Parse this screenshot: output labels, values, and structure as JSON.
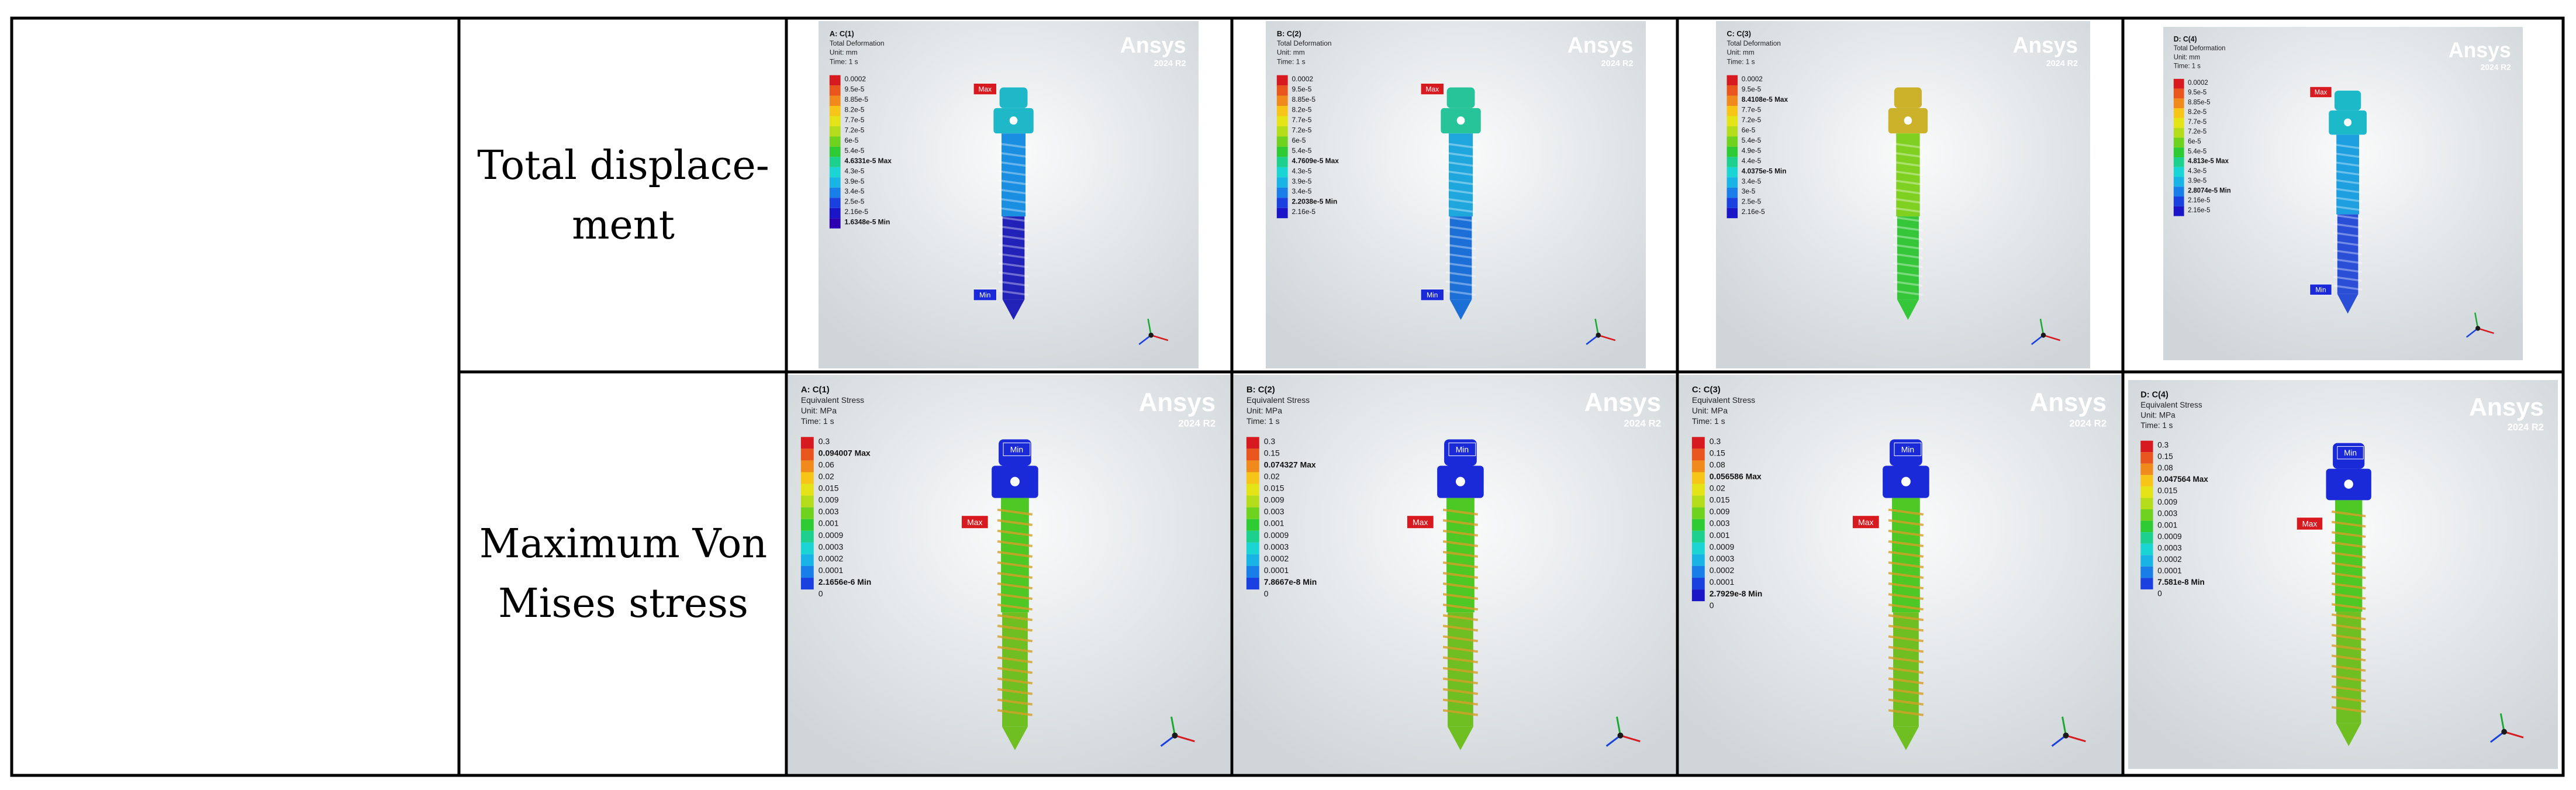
{
  "rows": [
    {
      "label": "Total displace-\nment",
      "panels": [
        {
          "id": "A: C(1)",
          "type": "Total Deformation",
          "unit": "Unit: mm",
          "time": "Time: 1 s",
          "legend": [
            "0.0002",
            "9.5e-5",
            "8.85e-5",
            "8.2e-5",
            "7.7e-5",
            "7.2e-5",
            "6e-5",
            "5.4e-5",
            "4.6331e-5 Max",
            "4.3e-5",
            "3.9e-5",
            "3.4e-5",
            "2.5e-5",
            "2.16e-5",
            "1.6348e-5 Min"
          ],
          "max_tag": "Max",
          "min_tag": "Min",
          "brand": "Ansys",
          "version": "2024 R2"
        },
        {
          "id": "B: C(2)",
          "type": "Total Deformation",
          "unit": "Unit: mm",
          "time": "Time: 1 s",
          "legend": [
            "0.0002",
            "9.5e-5",
            "8.85e-5",
            "8.2e-5",
            "7.7e-5",
            "7.2e-5",
            "6e-5",
            "5.4e-5",
            "4.7609e-5 Max",
            "4.3e-5",
            "3.9e-5",
            "3.4e-5",
            "2.2038e-5 Min",
            "2.16e-5"
          ],
          "max_tag": "Max",
          "min_tag": "Min",
          "brand": "Ansys",
          "version": "2024 R2"
        },
        {
          "id": "C: C(3)",
          "type": "Total Deformation",
          "unit": "Unit: mm",
          "time": "Time: 1 s",
          "legend": [
            "0.0002",
            "9.5e-5",
            "8.4108e-5 Max",
            "7.7e-5",
            "7.2e-5",
            "6e-5",
            "5.4e-5",
            "4.9e-5",
            "4.4e-5",
            "4.0375e-5 Min",
            "3.4e-5",
            "3e-5",
            "2.5e-5",
            "2.16e-5"
          ],
          "max_tag": "",
          "min_tag": "",
          "brand": "Ansys",
          "version": "2024 R2"
        },
        {
          "id": "D: C(4)",
          "type": "Total Deformation",
          "unit": "Unit: mm",
          "time": "Time: 1 s",
          "legend": [
            "0.0002",
            "9.5e-5",
            "8.85e-5",
            "8.2e-5",
            "7.7e-5",
            "7.2e-5",
            "6e-5",
            "5.4e-5",
            "4.813e-5 Max",
            "4.3e-5",
            "3.9e-5",
            "2.8074e-5 Min",
            "2.16e-5",
            "2.16e-5"
          ],
          "max_tag": "Max",
          "min_tag": "Min",
          "brand": "Ansys",
          "version": "2024 R2"
        }
      ]
    },
    {
      "label": "Maximum Von\nMises stress",
      "panels": [
        {
          "id": "A: C(1)",
          "type": "Equivalent Stress",
          "unit": "Unit: MPa",
          "time": "Time: 1 s",
          "legend": [
            "0.3",
            "0.094007 Max",
            "0.06",
            "0.02",
            "0.015",
            "0.009",
            "0.003",
            "0.001",
            "0.0009",
            "0.0003",
            "0.0002",
            "0.0001",
            "2.1656e-6 Min",
            "0"
          ],
          "max_tag": "Max",
          "min_tag": "Min",
          "brand": "Ansys",
          "version": "2024 R2"
        },
        {
          "id": "B: C(2)",
          "type": "Equivalent Stress",
          "unit": "Unit: MPa",
          "time": "Time: 1 s",
          "legend": [
            "0.3",
            "0.15",
            "0.074327 Max",
            "0.02",
            "0.015",
            "0.009",
            "0.003",
            "0.001",
            "0.0009",
            "0.0003",
            "0.0002",
            "0.0001",
            "7.8667e-8 Min",
            "0"
          ],
          "max_tag": "Max",
          "min_tag": "Min",
          "brand": "Ansys",
          "version": "2024 R2"
        },
        {
          "id": "C: C(3)",
          "type": "Equivalent Stress",
          "unit": "Unit: MPa",
          "time": "Time: 1 s",
          "legend": [
            "0.3",
            "0.15",
            "0.08",
            "0.056586 Max",
            "0.02",
            "0.015",
            "0.009",
            "0.003",
            "0.001",
            "0.0009",
            "0.0003",
            "0.0002",
            "0.0001",
            "2.7929e-8 Min",
            "0"
          ],
          "max_tag": "Max",
          "min_tag": "Min",
          "brand": "Ansys",
          "version": "2024 R2"
        },
        {
          "id": "D: C(4)",
          "type": "Equivalent Stress",
          "unit": "Unit: MPa",
          "time": "Time: 1 s",
          "legend": [
            "0.3",
            "0.15",
            "0.08",
            "0.047564 Max",
            "0.015",
            "0.009",
            "0.003",
            "0.001",
            "0.0009",
            "0.0003",
            "0.0002",
            "0.0001",
            "7.581e-8 Min",
            "0"
          ],
          "max_tag": "Max",
          "min_tag": "Min",
          "brand": "Ansys",
          "version": "2024 R2"
        }
      ]
    }
  ],
  "colors": {
    "legend_scale": [
      "#d71920",
      "#e8561d",
      "#f08a1c",
      "#f7c518",
      "#e4e318",
      "#b5dc1b",
      "#6fd21f",
      "#2fcb34",
      "#1ed08e",
      "#1bd4d4",
      "#19b3e6",
      "#1a7ee8",
      "#1a40e0",
      "#1a16c8",
      "#2a00b0"
    ],
    "max_tag": "#d71920",
    "min_tag": "#1a2ad8"
  }
}
